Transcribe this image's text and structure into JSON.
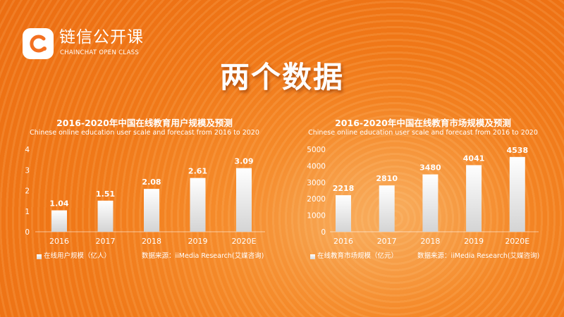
{
  "logo": {
    "name_cn": "链信公开课",
    "name_en": "CHAINCHAT OPEN CLASS",
    "accent": "#f37021"
  },
  "title": "两个数据",
  "chart_data": [
    {
      "type": "bar",
      "title": "2016-2020年中国在线教育用户规模及预测",
      "subtitle": "Chinese online education user scale and forecast from 2016 to 2020",
      "categories": [
        "2016",
        "2017",
        "2018",
        "2019",
        "2020E"
      ],
      "series": [
        {
          "name": "在线用户规模（亿人）",
          "values": [
            1.04,
            1.51,
            2.08,
            2.61,
            3.09
          ]
        }
      ],
      "value_labels": [
        "1.04",
        "1.51",
        "2.08",
        "2.61",
        "3.09"
      ],
      "yticks": [
        "0",
        "1",
        "2",
        "3",
        "4"
      ],
      "ylim": [
        0,
        4
      ],
      "grid": false,
      "legend_position": "bottom-left",
      "source": "数据来源：iiMedia Research(艾媒咨询)"
    },
    {
      "type": "bar",
      "title": "2016-2020年中国在线教育市场规模及预测",
      "subtitle": "Chinese online education user scale and forecast from 2016 to 2020",
      "categories": [
        "2016",
        "2017",
        "2018",
        "2019",
        "2020E"
      ],
      "series": [
        {
          "name": "在线教育市场规模（亿元）",
          "values": [
            2218,
            2810,
            3480,
            4041,
            4538
          ]
        }
      ],
      "value_labels": [
        "2218",
        "2810",
        "3480",
        "4041",
        "4538"
      ],
      "yticks": [
        "0",
        "1000",
        "2000",
        "3000",
        "4000",
        "5000"
      ],
      "ylim": [
        0,
        5000
      ],
      "grid": false,
      "legend_position": "bottom-left",
      "source": "数据来源：iiMedia Research(艾媒咨询)"
    }
  ]
}
